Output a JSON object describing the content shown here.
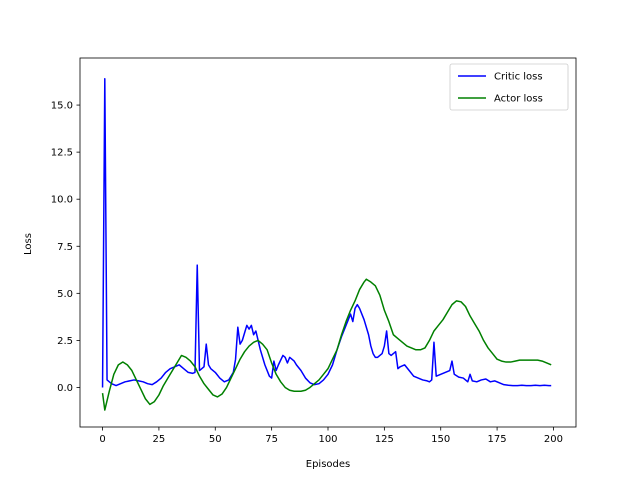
{
  "chart_data": {
    "type": "line",
    "title": "",
    "xlabel": "Episodes",
    "ylabel": "Loss",
    "xlim": [
      -10,
      210
    ],
    "ylim": [
      -2.1,
      17.5
    ],
    "xticks": [
      0,
      25,
      50,
      75,
      100,
      125,
      150,
      175,
      200
    ],
    "xtick_labels": [
      "0",
      "25",
      "50",
      "75",
      "100",
      "125",
      "150",
      "175",
      "200"
    ],
    "yticks": [
      0.0,
      2.5,
      5.0,
      7.5,
      10.0,
      12.5,
      15.0
    ],
    "ytick_labels": [
      "0.0",
      "2.5",
      "5.0",
      "7.5",
      "10.0",
      "12.5",
      "15.0"
    ],
    "grid": false,
    "legend_position": "top-right",
    "series": [
      {
        "name": "Critic loss",
        "color": "#0000ff",
        "points": [
          [
            0,
            0.0
          ],
          [
            1,
            16.4
          ],
          [
            2,
            0.4
          ],
          [
            4,
            0.2
          ],
          [
            6,
            0.1
          ],
          [
            8,
            0.2
          ],
          [
            10,
            0.3
          ],
          [
            12,
            0.35
          ],
          [
            14,
            0.4
          ],
          [
            16,
            0.35
          ],
          [
            18,
            0.3
          ],
          [
            20,
            0.2
          ],
          [
            22,
            0.15
          ],
          [
            24,
            0.3
          ],
          [
            26,
            0.5
          ],
          [
            28,
            0.8
          ],
          [
            30,
            1.0
          ],
          [
            32,
            1.1
          ],
          [
            34,
            1.2
          ],
          [
            36,
            1.0
          ],
          [
            38,
            0.8
          ],
          [
            40,
            0.75
          ],
          [
            41,
            0.8
          ],
          [
            42,
            6.5
          ],
          [
            43,
            0.9
          ],
          [
            44,
            1.0
          ],
          [
            45,
            1.1
          ],
          [
            46,
            2.3
          ],
          [
            47,
            1.2
          ],
          [
            48,
            1.0
          ],
          [
            50,
            0.8
          ],
          [
            52,
            0.5
          ],
          [
            54,
            0.3
          ],
          [
            56,
            0.4
          ],
          [
            58,
            0.8
          ],
          [
            59,
            1.5
          ],
          [
            60,
            3.2
          ],
          [
            61,
            2.3
          ],
          [
            62,
            2.5
          ],
          [
            63,
            2.9
          ],
          [
            64,
            3.3
          ],
          [
            65,
            3.1
          ],
          [
            66,
            3.3
          ],
          [
            67,
            2.8
          ],
          [
            68,
            3.0
          ],
          [
            70,
            2.0
          ],
          [
            72,
            1.2
          ],
          [
            74,
            0.6
          ],
          [
            75,
            0.5
          ],
          [
            76,
            1.4
          ],
          [
            77,
            0.9
          ],
          [
            78,
            1.2
          ],
          [
            80,
            1.7
          ],
          [
            81,
            1.6
          ],
          [
            82,
            1.3
          ],
          [
            83,
            1.6
          ],
          [
            84,
            1.5
          ],
          [
            85,
            1.4
          ],
          [
            86,
            1.2
          ],
          [
            88,
            0.9
          ],
          [
            90,
            0.5
          ],
          [
            92,
            0.25
          ],
          [
            94,
            0.15
          ],
          [
            96,
            0.2
          ],
          [
            98,
            0.4
          ],
          [
            100,
            0.7
          ],
          [
            102,
            1.2
          ],
          [
            104,
            2.0
          ],
          [
            106,
            2.7
          ],
          [
            108,
            3.3
          ],
          [
            110,
            3.9
          ],
          [
            111,
            3.5
          ],
          [
            112,
            4.2
          ],
          [
            113,
            4.4
          ],
          [
            114,
            4.2
          ],
          [
            116,
            3.6
          ],
          [
            118,
            2.8
          ],
          [
            119,
            2.2
          ],
          [
            120,
            1.8
          ],
          [
            121,
            1.6
          ],
          [
            122,
            1.6
          ],
          [
            124,
            1.8
          ],
          [
            125,
            2.2
          ],
          [
            126,
            3.0
          ],
          [
            127,
            1.8
          ],
          [
            128,
            1.7
          ],
          [
            130,
            1.9
          ],
          [
            131,
            1.0
          ],
          [
            132,
            1.1
          ],
          [
            134,
            1.2
          ],
          [
            136,
            0.9
          ],
          [
            138,
            0.6
          ],
          [
            140,
            0.5
          ],
          [
            142,
            0.4
          ],
          [
            144,
            0.35
          ],
          [
            145,
            0.3
          ],
          [
            146,
            0.4
          ],
          [
            147,
            2.4
          ],
          [
            148,
            0.6
          ],
          [
            150,
            0.7
          ],
          [
            152,
            0.8
          ],
          [
            154,
            0.9
          ],
          [
            155,
            1.4
          ],
          [
            156,
            0.7
          ],
          [
            158,
            0.55
          ],
          [
            160,
            0.5
          ],
          [
            162,
            0.3
          ],
          [
            163,
            0.7
          ],
          [
            164,
            0.35
          ],
          [
            166,
            0.3
          ],
          [
            168,
            0.4
          ],
          [
            170,
            0.45
          ],
          [
            172,
            0.3
          ],
          [
            174,
            0.35
          ],
          [
            176,
            0.25
          ],
          [
            178,
            0.15
          ],
          [
            180,
            0.12
          ],
          [
            182,
            0.1
          ],
          [
            184,
            0.1
          ],
          [
            186,
            0.12
          ],
          [
            188,
            0.1
          ],
          [
            190,
            0.1
          ],
          [
            192,
            0.12
          ],
          [
            194,
            0.1
          ],
          [
            196,
            0.12
          ],
          [
            198,
            0.1
          ],
          [
            199,
            0.1
          ]
        ]
      },
      {
        "name": "Actor loss",
        "color": "#008000",
        "points": [
          [
            0,
            -0.3
          ],
          [
            1,
            -1.2
          ],
          [
            3,
            -0.2
          ],
          [
            5,
            0.7
          ],
          [
            7,
            1.2
          ],
          [
            9,
            1.35
          ],
          [
            11,
            1.2
          ],
          [
            13,
            0.9
          ],
          [
            15,
            0.4
          ],
          [
            17,
            -0.1
          ],
          [
            19,
            -0.6
          ],
          [
            21,
            -0.9
          ],
          [
            23,
            -0.75
          ],
          [
            25,
            -0.4
          ],
          [
            27,
            0.1
          ],
          [
            29,
            0.5
          ],
          [
            31,
            0.9
          ],
          [
            33,
            1.3
          ],
          [
            35,
            1.7
          ],
          [
            37,
            1.6
          ],
          [
            39,
            1.4
          ],
          [
            41,
            1.1
          ],
          [
            43,
            0.6
          ],
          [
            45,
            0.2
          ],
          [
            47,
            -0.1
          ],
          [
            49,
            -0.4
          ],
          [
            51,
            -0.5
          ],
          [
            53,
            -0.35
          ],
          [
            55,
            0.0
          ],
          [
            57,
            0.5
          ],
          [
            59,
            1.0
          ],
          [
            61,
            1.5
          ],
          [
            63,
            1.9
          ],
          [
            65,
            2.2
          ],
          [
            67,
            2.4
          ],
          [
            69,
            2.5
          ],
          [
            71,
            2.3
          ],
          [
            73,
            2.0
          ],
          [
            75,
            1.3
          ],
          [
            77,
            0.7
          ],
          [
            79,
            0.3
          ],
          [
            81,
            0.0
          ],
          [
            83,
            -0.15
          ],
          [
            85,
            -0.2
          ],
          [
            88,
            -0.2
          ],
          [
            90,
            -0.15
          ],
          [
            92,
            0.0
          ],
          [
            94,
            0.2
          ],
          [
            96,
            0.4
          ],
          [
            98,
            0.7
          ],
          [
            100,
            1.0
          ],
          [
            102,
            1.5
          ],
          [
            104,
            2.0
          ],
          [
            106,
            2.8
          ],
          [
            108,
            3.5
          ],
          [
            110,
            4.1
          ],
          [
            112,
            4.6
          ],
          [
            114,
            5.2
          ],
          [
            116,
            5.6
          ],
          [
            117,
            5.75
          ],
          [
            119,
            5.6
          ],
          [
            121,
            5.4
          ],
          [
            123,
            4.9
          ],
          [
            125,
            4.1
          ],
          [
            127,
            3.5
          ],
          [
            129,
            2.8
          ],
          [
            131,
            2.6
          ],
          [
            133,
            2.4
          ],
          [
            135,
            2.2
          ],
          [
            137,
            2.1
          ],
          [
            139,
            2.0
          ],
          [
            141,
            2.0
          ],
          [
            143,
            2.1
          ],
          [
            145,
            2.5
          ],
          [
            147,
            3.0
          ],
          [
            149,
            3.3
          ],
          [
            151,
            3.6
          ],
          [
            153,
            4.0
          ],
          [
            155,
            4.4
          ],
          [
            157,
            4.6
          ],
          [
            159,
            4.55
          ],
          [
            161,
            4.3
          ],
          [
            163,
            3.8
          ],
          [
            165,
            3.4
          ],
          [
            167,
            3.0
          ],
          [
            169,
            2.5
          ],
          [
            171,
            2.1
          ],
          [
            173,
            1.8
          ],
          [
            175,
            1.5
          ],
          [
            177,
            1.4
          ],
          [
            179,
            1.35
          ],
          [
            181,
            1.35
          ],
          [
            183,
            1.4
          ],
          [
            185,
            1.45
          ],
          [
            187,
            1.45
          ],
          [
            189,
            1.45
          ],
          [
            191,
            1.45
          ],
          [
            193,
            1.45
          ],
          [
            195,
            1.4
          ],
          [
            197,
            1.3
          ],
          [
            199,
            1.2
          ]
        ]
      }
    ]
  }
}
